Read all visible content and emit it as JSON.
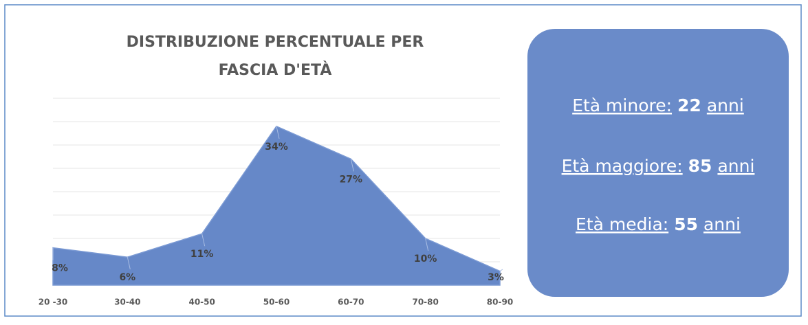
{
  "chart_data": {
    "type": "area",
    "title": [
      "DISTRIBUZIONE PERCENTUALE PER",
      "FASCIA D'ETÀ"
    ],
    "categories": [
      "20 -30",
      "30-40",
      "40-50",
      "50-60",
      "60-70",
      "70-80",
      "80-90"
    ],
    "values": [
      8,
      6,
      11,
      34,
      27,
      10,
      3
    ],
    "value_labels": [
      "8%",
      "6%",
      "11%",
      "34%",
      "27%",
      "10%",
      "3%"
    ],
    "color": "#6688c8",
    "ylim": [
      0,
      40
    ],
    "yticks": [
      0,
      5,
      10,
      15,
      20,
      25,
      30,
      35,
      40
    ],
    "grid": true
  },
  "info": [
    {
      "label": "Età minore:",
      "value": "22",
      "unit": "anni"
    },
    {
      "label": "Età maggiore:",
      "value": "85",
      "unit": "anni"
    },
    {
      "label": "Età media:",
      "value": "55",
      "unit": "anni"
    }
  ]
}
